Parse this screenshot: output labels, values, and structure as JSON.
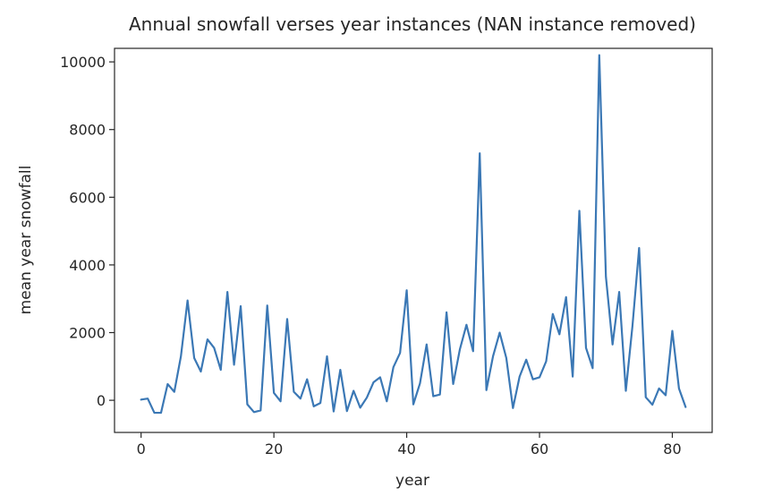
{
  "chart_data": {
    "type": "line",
    "title": "Annual snowfall verses year instances (NAN instance removed)",
    "xlabel": "year",
    "ylabel": "mean year snowfall",
    "xlim": [
      -4,
      86
    ],
    "ylim": [
      -950,
      10400
    ],
    "xticks": [
      0,
      20,
      40,
      60,
      80
    ],
    "xtick_labels": [
      "0",
      "20",
      "40",
      "60",
      "80"
    ],
    "yticks": [
      0,
      2000,
      4000,
      6000,
      8000,
      10000
    ],
    "ytick_labels": [
      "0",
      "2000",
      "4000",
      "6000",
      "8000",
      "10000"
    ],
    "grid": false,
    "legend": "none",
    "series": [
      {
        "color": "#3b78b5",
        "x": [
          0,
          1,
          2,
          3,
          4,
          5,
          6,
          7,
          8,
          9,
          10,
          11,
          12,
          13,
          14,
          15,
          16,
          17,
          18,
          19,
          20,
          21,
          22,
          23,
          24,
          25,
          26,
          27,
          28,
          29,
          30,
          31,
          32,
          33,
          34,
          35,
          36,
          37,
          38,
          39,
          40,
          41,
          42,
          43,
          44,
          45,
          46,
          47,
          48,
          49,
          50,
          51,
          52,
          53,
          54,
          55,
          56,
          57,
          58,
          59,
          60,
          61,
          62,
          63,
          64,
          65,
          66,
          67,
          68,
          69,
          70,
          71,
          72,
          73,
          74,
          75,
          76,
          77,
          78,
          79,
          80,
          81,
          82
        ],
        "y": [
          20,
          50,
          -370,
          -370,
          480,
          250,
          1300,
          2950,
          1250,
          850,
          1800,
          1550,
          900,
          3200,
          1050,
          2780,
          -120,
          -350,
          -300,
          2800,
          220,
          -30,
          2400,
          250,
          50,
          620,
          -180,
          -80,
          1300,
          -330,
          900,
          -320,
          280,
          -220,
          80,
          530,
          680,
          -30,
          980,
          1400,
          3250,
          -120,
          500,
          1650,
          120,
          170,
          2600,
          480,
          1500,
          2230,
          1450,
          7300,
          300,
          1300,
          2000,
          1250,
          -230,
          700,
          1200,
          620,
          680,
          1150,
          2550,
          1950,
          3050,
          700,
          5600,
          1550,
          950,
          10200,
          3650,
          1650,
          3200,
          280,
          2200,
          4500,
          90,
          -130,
          350,
          150,
          2050,
          350,
          -200
        ]
      }
    ]
  }
}
